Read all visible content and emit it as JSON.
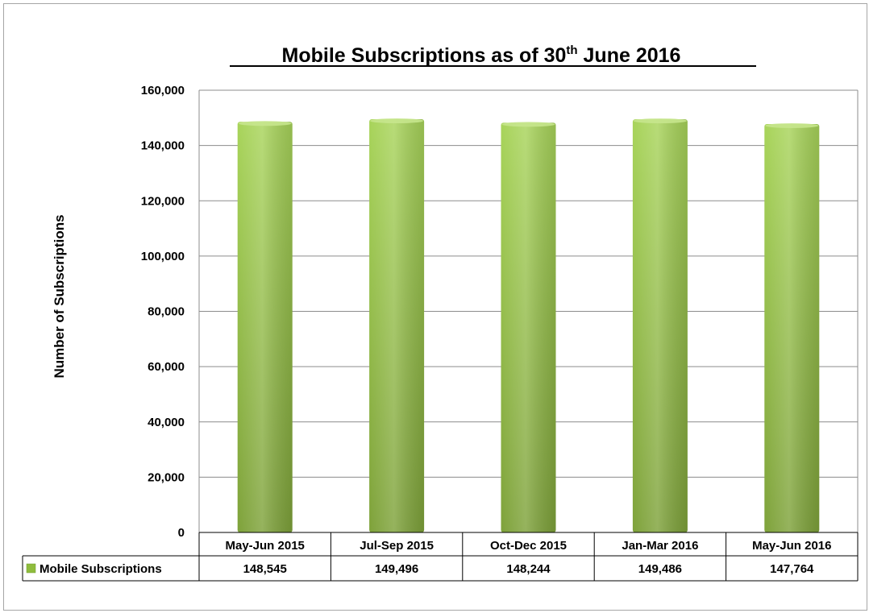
{
  "chart_data": {
    "type": "bar",
    "title": "Mobile Subscriptions as of 30th June 2016",
    "title_main": "Mobile Subscriptions as of 30",
    "title_superscript": "th",
    "title_tail": " June 2016",
    "ylabel": "Number of Subscriptions",
    "xlabel": "",
    "ylim": [
      0,
      160000
    ],
    "y_ticks": [
      0,
      20000,
      40000,
      60000,
      80000,
      100000,
      120000,
      140000,
      160000
    ],
    "y_tick_labels": [
      "0",
      "20,000",
      "40,000",
      "60,000",
      "80,000",
      "100,000",
      "120,000",
      "140,000",
      "160,000"
    ],
    "categories": [
      "May-Jun 2015",
      "Jul-Sep 2015",
      "Oct-Dec 2015",
      "Jan-Mar 2016",
      "May-Jun 2016"
    ],
    "series": [
      {
        "name": "Mobile Subscriptions",
        "values": [
          148545,
          149496,
          148244,
          149486,
          147764
        ],
        "value_labels": [
          "148,545",
          "149,496",
          "148,244",
          "149,486",
          "147,764"
        ],
        "color": "#8fbc3d"
      }
    ],
    "grid": true,
    "legend": "data-table"
  }
}
